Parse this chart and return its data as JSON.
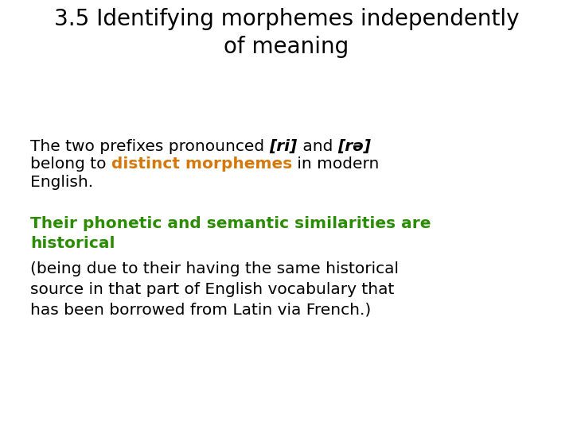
{
  "bg_color": "#ffffff",
  "title_line1": "3.5 Identifying morphemes independently",
  "title_line2": "of meaning",
  "title_color": "#000000",
  "title_fontsize": 20,
  "body_fontsize": 14.5,
  "green_fontsize": 14.5,
  "orange_color": "#d4780a",
  "green_color": "#2a8c00",
  "black_color": "#000000",
  "para2_green": "Their phonetic and semantic similarities are\nhistorical",
  "para3": "(being due to their having the same historical\nsource in that part of English vocabulary that\nhas been borrowed from Latin via French.)"
}
